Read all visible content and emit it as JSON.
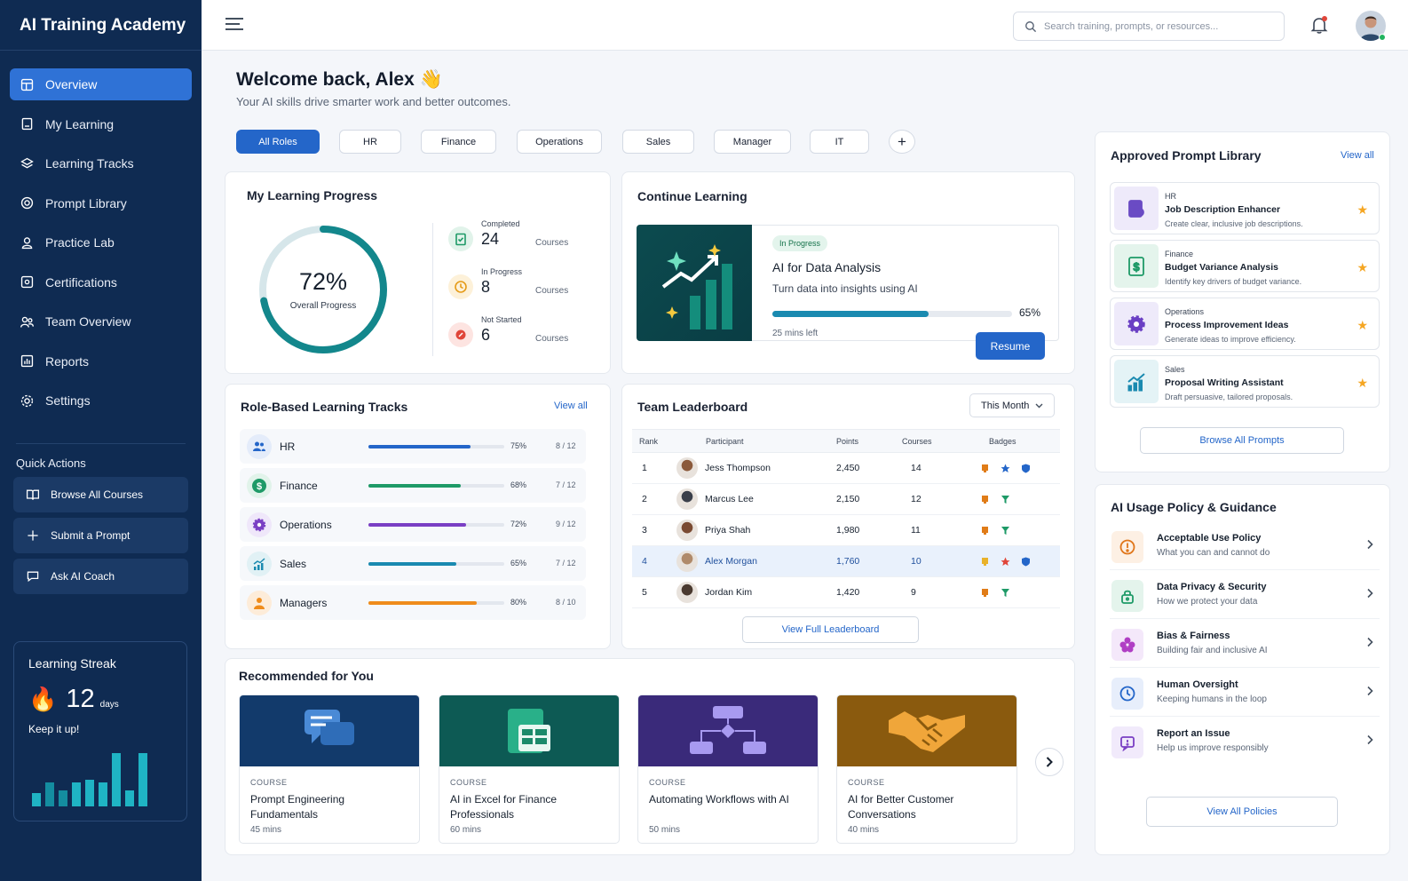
{
  "app": {
    "title": "AI Training Academy"
  },
  "sidebar": {
    "items": [
      {
        "label": "Overview",
        "icon": "grid-icon",
        "active": true
      },
      {
        "label": "My Learning",
        "icon": "book-icon"
      },
      {
        "label": "Learning Tracks",
        "icon": "layers-icon"
      },
      {
        "label": "Prompt Library",
        "icon": "library-icon"
      },
      {
        "label": "Practice Lab",
        "icon": "flask-icon"
      },
      {
        "label": "Certifications",
        "icon": "certificate-icon"
      },
      {
        "label": "Team Overview",
        "icon": "team-icon"
      },
      {
        "label": "Reports",
        "icon": "chart-icon"
      },
      {
        "label": "Settings",
        "icon": "gear-icon"
      }
    ],
    "quick_actions_title": "Quick Actions",
    "quick_actions": [
      {
        "label": "Browse All Courses",
        "icon": "book-open-icon"
      },
      {
        "label": "Submit a Prompt",
        "icon": "plus-icon"
      },
      {
        "label": "Ask AI Coach",
        "icon": "chat-icon"
      }
    ],
    "streak": {
      "title": "Learning Streak",
      "value": "12",
      "unit": "days",
      "message": "Keep it up!",
      "bars": [
        0.25,
        0.45,
        0.3,
        0.45,
        0.5,
        0.45,
        1.0,
        0.3,
        1.0
      ]
    }
  },
  "header": {
    "search_placeholder": "Search training, prompts, or resources..."
  },
  "welcome": {
    "title": "Welcome back, Alex 👋",
    "subtitle": "Your AI skills drive smarter work and better outcomes."
  },
  "role_filters": [
    "All Roles",
    "HR",
    "Finance",
    "Operations",
    "Sales",
    "Manager",
    "IT"
  ],
  "progress": {
    "title": "My Learning Progress",
    "percent": "72%",
    "percent_value": 0.72,
    "label": "Overall Progress",
    "stats": [
      {
        "label": "Completed",
        "value": "24",
        "unit": "Courses",
        "color": "#1e9a67"
      },
      {
        "label": "In Progress",
        "value": "8",
        "unit": "Courses",
        "color": "#e59b18"
      },
      {
        "label": "Not Started",
        "value": "6",
        "unit": "Courses",
        "color": "#e0463a"
      }
    ]
  },
  "continue": {
    "title": "Continue Learning",
    "badge": "In Progress",
    "course": "AI for Data Analysis",
    "desc": "Turn data into insights using AI",
    "progress": "65%",
    "progress_value": 0.65,
    "time_left": "25 mins left",
    "button": "Resume"
  },
  "tracks": {
    "title": "Role-Based Learning Tracks",
    "view_all": "View all",
    "items": [
      {
        "name": "HR",
        "pct": "75%",
        "value": 0.75,
        "count": "8 / 12",
        "color": "#2466c9",
        "icon": "people-icon"
      },
      {
        "name": "Finance",
        "pct": "68%",
        "value": 0.68,
        "count": "7 / 12",
        "color": "#1e9a67",
        "icon": "dollar-icon"
      },
      {
        "name": "Operations",
        "pct": "72%",
        "value": 0.72,
        "count": "9 / 12",
        "color": "#7a3fc4",
        "icon": "gear-icon"
      },
      {
        "name": "Sales",
        "pct": "65%",
        "value": 0.65,
        "count": "7 / 12",
        "color": "#1a8ab0",
        "icon": "growth-icon"
      },
      {
        "name": "Managers",
        "pct": "80%",
        "value": 0.8,
        "count": "8 / 10",
        "color": "#ef8c1c",
        "icon": "person-icon"
      }
    ]
  },
  "leaderboard": {
    "title": "Team Leaderboard",
    "period": "This Month",
    "columns": [
      "Rank",
      "Participant",
      "Points",
      "Courses",
      "Badges"
    ],
    "rows": [
      {
        "rank": "1",
        "name": "Jess Thompson",
        "points": "2,450",
        "courses": "14",
        "avatar": "#8b5a3c"
      },
      {
        "rank": "2",
        "name": "Marcus Lee",
        "points": "2,150",
        "courses": "12",
        "avatar": "#3a3f4a"
      },
      {
        "rank": "3",
        "name": "Priya Shah",
        "points": "1,980",
        "courses": "11",
        "avatar": "#7a4a32"
      },
      {
        "rank": "4",
        "name": "Alex Morgan",
        "points": "1,760",
        "courses": "10",
        "avatar": "#b08a6a",
        "highlight": true
      },
      {
        "rank": "5",
        "name": "Jordan Kim",
        "points": "1,420",
        "courses": "9",
        "avatar": "#4a3a30"
      }
    ],
    "button": "View Full Leaderboard"
  },
  "recommended": {
    "title": "Recommended for You",
    "items": [
      {
        "tag": "COURSE",
        "name": "Prompt Engineering Fundamentals",
        "mins": "45 mins",
        "bg": "#123a6b",
        "icon": "chat-bubbles-icon"
      },
      {
        "tag": "COURSE",
        "name": "AI in Excel for Finance Professionals",
        "mins": "60 mins",
        "bg": "#0d5a54",
        "icon": "spreadsheet-icon"
      },
      {
        "tag": "COURSE",
        "name": "Automating Workflows with AI",
        "mins": "50 mins",
        "bg": "#3a2a7a",
        "icon": "workflow-icon"
      },
      {
        "tag": "COURSE",
        "name": "AI for Better Customer Conversations",
        "mins": "40 mins",
        "bg": "#8a5a0e",
        "icon": "handshake-icon"
      }
    ]
  },
  "prompts": {
    "title": "Approved Prompt Library",
    "view_all": "View all",
    "items": [
      {
        "category": "HR",
        "name": "Job Description Enhancer",
        "desc": "Create clear, inclusive job descriptions.",
        "bg": "#eeeafa",
        "fg": "#6a4bc4",
        "icon": "document-icon"
      },
      {
        "category": "Finance",
        "name": "Budget Variance Analysis",
        "desc": "Identify key drivers of budget variance.",
        "bg": "#e4f4ec",
        "fg": "#1e9a67",
        "icon": "dollar-doc-icon"
      },
      {
        "category": "Operations",
        "name": "Process Improvement Ideas",
        "desc": "Generate ideas to improve efficiency.",
        "bg": "#eeeafa",
        "fg": "#6a3fc4",
        "icon": "gear-icon"
      },
      {
        "category": "Sales",
        "name": "Proposal Writing Assistant",
        "desc": "Draft persuasive, tailored proposals.",
        "bg": "#e4f3f6",
        "fg": "#1a8ab0",
        "icon": "growth-icon"
      }
    ],
    "button": "Browse All Prompts"
  },
  "policy": {
    "title": "AI Usage Policy & Guidance",
    "items": [
      {
        "name": "Acceptable Use Policy",
        "desc": "What you can and cannot do",
        "bg": "#fdf0e4",
        "fg": "#e0761a",
        "icon": "alert-icon"
      },
      {
        "name": "Data Privacy & Security",
        "desc": "How we protect your data",
        "bg": "#e4f4ec",
        "fg": "#1e9a67",
        "icon": "lock-icon"
      },
      {
        "name": "Bias & Fairness",
        "desc": "Building fair and inclusive AI",
        "bg": "#f4e8fa",
        "fg": "#b03fc4",
        "icon": "sparkle-icon"
      },
      {
        "name": "Human Oversight",
        "desc": "Keeping humans in the loop",
        "bg": "#e7eefb",
        "fg": "#2466c9",
        "icon": "clock-icon"
      },
      {
        "name": "Report an Issue",
        "desc": "Help us improve responsibly",
        "bg": "#f1eafb",
        "fg": "#7a3fc4",
        "icon": "report-icon"
      }
    ],
    "button": "View All Policies"
  }
}
